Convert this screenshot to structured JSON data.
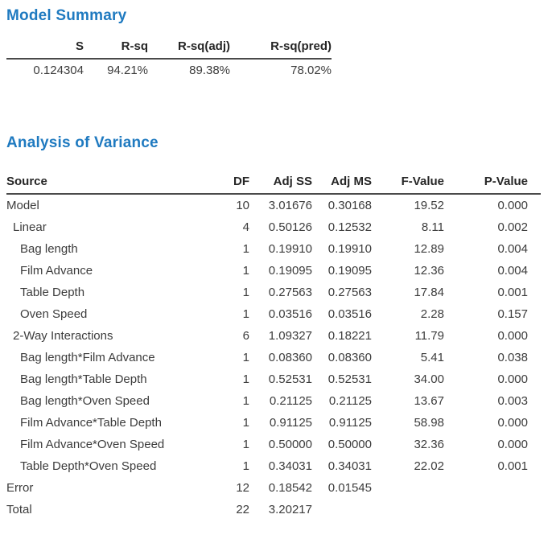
{
  "colors": {
    "accent": "#1f7ac0",
    "rule": "#4a4a4a",
    "text": "#3c3c3c"
  },
  "model_summary": {
    "title": "Model Summary",
    "columns": [
      "S",
      "R-sq",
      "R-sq(adj)",
      "R-sq(pred)"
    ],
    "values": [
      "0.124304",
      "94.21%",
      "89.38%",
      "78.02%"
    ]
  },
  "anova": {
    "title": "Analysis of Variance",
    "columns": [
      "Source",
      "DF",
      "Adj SS",
      "Adj MS",
      "F-Value",
      "P-Value"
    ],
    "rows": [
      {
        "source": "Model",
        "indent": 0,
        "df": "10",
        "adj_ss": "3.01676",
        "adj_ms": "0.30168",
        "f_value": "19.52",
        "p_value": "0.000"
      },
      {
        "source": "Linear",
        "indent": 1,
        "df": "4",
        "adj_ss": "0.50126",
        "adj_ms": "0.12532",
        "f_value": "8.11",
        "p_value": "0.002"
      },
      {
        "source": "Bag length",
        "indent": 2,
        "df": "1",
        "adj_ss": "0.19910",
        "adj_ms": "0.19910",
        "f_value": "12.89",
        "p_value": "0.004"
      },
      {
        "source": "Film Advance",
        "indent": 2,
        "df": "1",
        "adj_ss": "0.19095",
        "adj_ms": "0.19095",
        "f_value": "12.36",
        "p_value": "0.004"
      },
      {
        "source": "Table Depth",
        "indent": 2,
        "df": "1",
        "adj_ss": "0.27563",
        "adj_ms": "0.27563",
        "f_value": "17.84",
        "p_value": "0.001"
      },
      {
        "source": "Oven Speed",
        "indent": 2,
        "df": "1",
        "adj_ss": "0.03516",
        "adj_ms": "0.03516",
        "f_value": "2.28",
        "p_value": "0.157"
      },
      {
        "source": "2-Way Interactions",
        "indent": 1,
        "df": "6",
        "adj_ss": "1.09327",
        "adj_ms": "0.18221",
        "f_value": "11.79",
        "p_value": "0.000"
      },
      {
        "source": "Bag length*Film Advance",
        "indent": 2,
        "df": "1",
        "adj_ss": "0.08360",
        "adj_ms": "0.08360",
        "f_value": "5.41",
        "p_value": "0.038"
      },
      {
        "source": "Bag length*Table Depth",
        "indent": 2,
        "df": "1",
        "adj_ss": "0.52531",
        "adj_ms": "0.52531",
        "f_value": "34.00",
        "p_value": "0.000"
      },
      {
        "source": "Bag length*Oven Speed",
        "indent": 2,
        "df": "1",
        "adj_ss": "0.21125",
        "adj_ms": "0.21125",
        "f_value": "13.67",
        "p_value": "0.003"
      },
      {
        "source": "Film Advance*Table Depth",
        "indent": 2,
        "df": "1",
        "adj_ss": "0.91125",
        "adj_ms": "0.91125",
        "f_value": "58.98",
        "p_value": "0.000"
      },
      {
        "source": "Film Advance*Oven Speed",
        "indent": 2,
        "df": "1",
        "adj_ss": "0.50000",
        "adj_ms": "0.50000",
        "f_value": "32.36",
        "p_value": "0.000"
      },
      {
        "source": "Table Depth*Oven Speed",
        "indent": 2,
        "df": "1",
        "adj_ss": "0.34031",
        "adj_ms": "0.34031",
        "f_value": "22.02",
        "p_value": "0.001"
      },
      {
        "source": "Error",
        "indent": 0,
        "df": "12",
        "adj_ss": "0.18542",
        "adj_ms": "0.01545",
        "f_value": "",
        "p_value": ""
      },
      {
        "source": "Total",
        "indent": 0,
        "df": "22",
        "adj_ss": "3.20217",
        "adj_ms": "",
        "f_value": "",
        "p_value": ""
      }
    ]
  }
}
